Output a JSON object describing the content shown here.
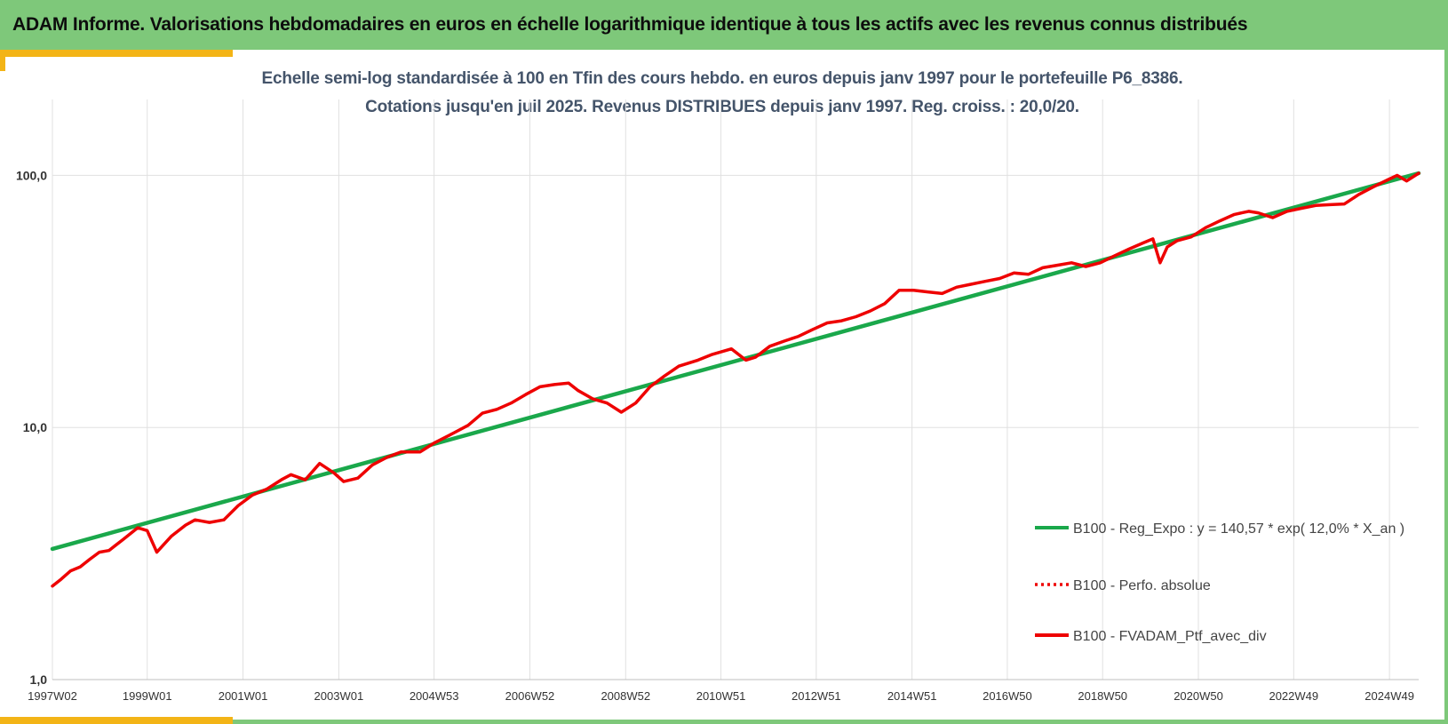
{
  "header": {
    "title": "ADAM Informe. Valorisations hebdomadaires en euros en échelle logarithmique identique à tous les actifs avec les revenus connus distribués"
  },
  "colors": {
    "header_bg": "#7ec87a",
    "accent": "#f3b416",
    "regression": "#1aa84b",
    "portfolio": "#ee0000",
    "grid": "#e0e0e0"
  },
  "chart_data": {
    "type": "line",
    "scale": "log",
    "title_line1": "Echelle semi-log standardisée  à 100 en Tfin des cours hebdo.  en euros depuis janv 1997 pour le portefeuille P6_8386.",
    "title_line2": "Cotations jusqu'en juil 2025. Revenus DISTRIBUES depuis janv 1997. Reg. croiss. : 20,0/20.",
    "xlabel": "",
    "ylabel": "",
    "x_range": [
      1997.02,
      2025.55
    ],
    "ylim": [
      1,
      200
    ],
    "y_ticks": [
      {
        "value": 1,
        "label": "1,0"
      },
      {
        "value": 10,
        "label": "10,0"
      },
      {
        "value": 100,
        "label": "100,0"
      }
    ],
    "x_ticks": [
      {
        "x": 1997.02,
        "label": "1997W02"
      },
      {
        "x": 1999.0,
        "label": "1999W01"
      },
      {
        "x": 2001.0,
        "label": "2001W01"
      },
      {
        "x": 2003.0,
        "label": "2003W01"
      },
      {
        "x": 2004.99,
        "label": "2004W53"
      },
      {
        "x": 2006.99,
        "label": "2006W52"
      },
      {
        "x": 2008.99,
        "label": "2008W52"
      },
      {
        "x": 2010.98,
        "label": "2010W51"
      },
      {
        "x": 2012.97,
        "label": "2012W51"
      },
      {
        "x": 2014.97,
        "label": "2014W51"
      },
      {
        "x": 2016.96,
        "label": "2016W50"
      },
      {
        "x": 2018.95,
        "label": "2018W50"
      },
      {
        "x": 2020.95,
        "label": "2020W50"
      },
      {
        "x": 2022.94,
        "label": "2022W49"
      },
      {
        "x": 2024.94,
        "label": "2024W49"
      }
    ],
    "grid": true,
    "legend_position": "right",
    "series": [
      {
        "name": "B100 - Reg_Expo : y = 140,57 * exp( 12,0% *  X_an )",
        "style": "solid",
        "color": "#1aa84b",
        "x": [
          1997.02,
          2025.55
        ],
        "y": [
          3.3,
          102
        ]
      },
      {
        "name": "B100 - Perfo. absolue",
        "style": "dotted",
        "color": "#ee0000",
        "x": [],
        "y": []
      },
      {
        "name": "B100 - FVADAM_Ptf_avec_div",
        "style": "solid",
        "color": "#ee0000",
        "x": [
          1997.02,
          1997.2,
          1997.4,
          1997.6,
          1997.8,
          1998.0,
          1998.2,
          1998.5,
          1998.8,
          1999.0,
          1999.2,
          1999.5,
          1999.8,
          2000.0,
          2000.3,
          2000.6,
          2000.9,
          2001.2,
          2001.5,
          2001.8,
          2002.0,
          2002.3,
          2002.6,
          2002.9,
          2003.1,
          2003.4,
          2003.7,
          2004.0,
          2004.3,
          2004.7,
          2005.0,
          2005.3,
          2005.7,
          2006.0,
          2006.3,
          2006.6,
          2006.9,
          2007.2,
          2007.5,
          2007.8,
          2008.0,
          2008.3,
          2008.6,
          2008.9,
          2009.2,
          2009.5,
          2009.8,
          2010.1,
          2010.5,
          2010.8,
          2011.2,
          2011.5,
          2011.7,
          2012.0,
          2012.3,
          2012.6,
          2012.9,
          2013.2,
          2013.5,
          2013.8,
          2014.1,
          2014.4,
          2014.7,
          2015.0,
          2015.3,
          2015.6,
          2015.9,
          2016.2,
          2016.5,
          2016.8,
          2017.1,
          2017.4,
          2017.7,
          2018.0,
          2018.3,
          2018.6,
          2018.9,
          2019.2,
          2019.5,
          2019.8,
          2020.0,
          2020.15,
          2020.3,
          2020.5,
          2020.8,
          2021.1,
          2021.4,
          2021.7,
          2022.0,
          2022.2,
          2022.5,
          2022.8,
          2023.1,
          2023.4,
          2023.7,
          2024.0,
          2024.3,
          2024.6,
          2024.9,
          2025.1,
          2025.3,
          2025.55
        ],
        "y": [
          2.35,
          2.5,
          2.7,
          2.8,
          3.0,
          3.2,
          3.25,
          3.6,
          4.0,
          3.9,
          3.2,
          3.7,
          4.1,
          4.3,
          4.2,
          4.3,
          4.9,
          5.4,
          5.7,
          6.2,
          6.5,
          6.2,
          7.2,
          6.6,
          6.1,
          6.3,
          7.1,
          7.6,
          8.0,
          8.0,
          8.7,
          9.3,
          10.2,
          11.4,
          11.8,
          12.5,
          13.5,
          14.5,
          14.8,
          15.0,
          14.0,
          13.0,
          12.5,
          11.5,
          12.5,
          14.5,
          16.0,
          17.5,
          18.5,
          19.5,
          20.5,
          18.5,
          19.0,
          21.0,
          22.0,
          23.0,
          24.5,
          26.0,
          26.5,
          27.5,
          29.0,
          31.0,
          35.0,
          35.0,
          34.5,
          34.0,
          36.0,
          37.0,
          38.0,
          39.0,
          41.0,
          40.5,
          43.0,
          44.0,
          45.0,
          43.5,
          45.0,
          48.0,
          51.0,
          54.0,
          56.0,
          45.0,
          52.0,
          55.0,
          57.0,
          62.0,
          66.0,
          70.0,
          72.0,
          71.0,
          68.0,
          72.0,
          74.0,
          76.0,
          76.5,
          77.0,
          84.0,
          90.0,
          96.0,
          100.0,
          95.0,
          102.0
        ]
      }
    ]
  }
}
